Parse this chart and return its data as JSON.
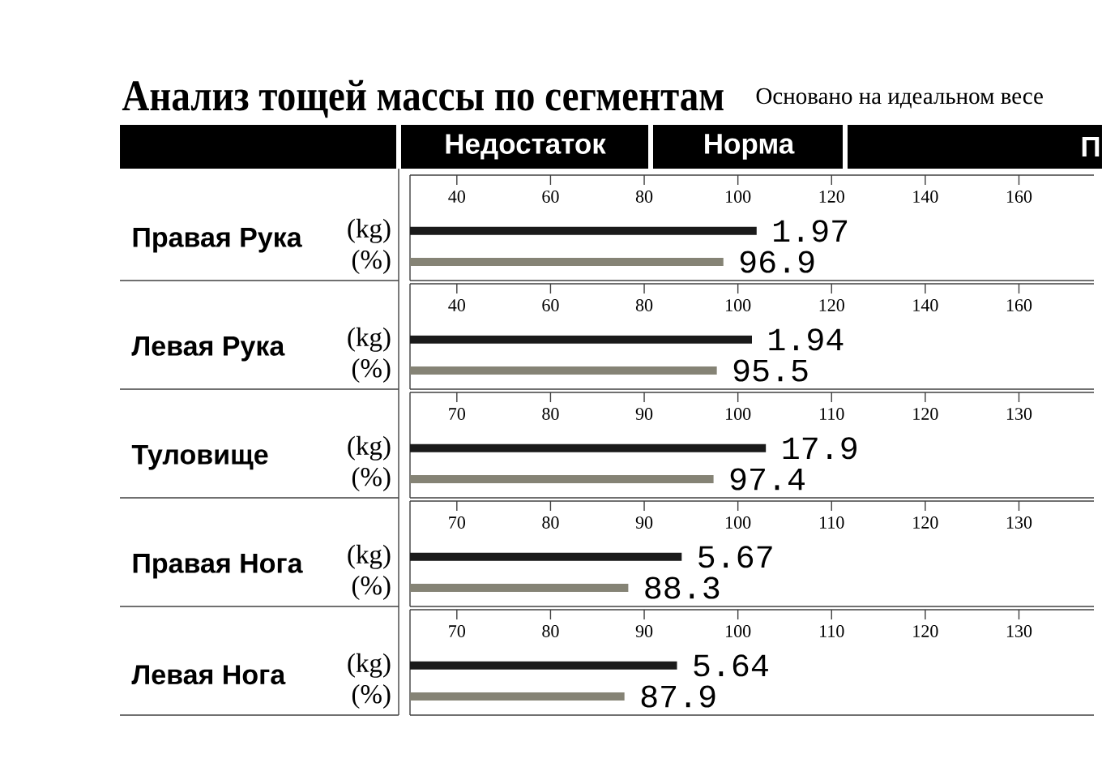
{
  "chart_data": [
    {
      "type": "other",
      "title": "Анализ тощей массы по сегментам",
      "subtitle": "Основано на идеальном весе",
      "annotations": [
        "Недостаток",
        "Норма",
        "П"
      ]
    },
    {
      "type": "bar",
      "orientation": "horizontal",
      "title": "Правая Рука",
      "categories": [
        "(kg)",
        "(%)"
      ],
      "xlim": [
        30,
        176
      ],
      "xticks": [
        40,
        60,
        80,
        100,
        120,
        140,
        160
      ],
      "values": [
        104,
        96.9
      ],
      "colors": [
        "#1a1a1a",
        "#858375"
      ],
      "value_labels": [
        null,
        "96.9"
      ],
      "annotations": [
        {
          "text": "1.97",
          "x": 104,
          "y": "(kg)"
        }
      ]
    },
    {
      "type": "bar",
      "orientation": "horizontal",
      "title": "Левая Рука",
      "categories": [
        "(kg)",
        "(%)"
      ],
      "xlim": [
        30,
        176
      ],
      "xticks": [
        40,
        60,
        80,
        100,
        120,
        140,
        160
      ],
      "values": [
        103,
        95.5
      ],
      "colors": [
        "#1a1a1a",
        "#858375"
      ],
      "value_labels": [
        null,
        "95.5"
      ],
      "annotations": [
        {
          "text": "1.94",
          "x": 103,
          "y": "(kg)"
        }
      ]
    },
    {
      "type": "bar",
      "orientation": "horizontal",
      "title": "Туловище",
      "categories": [
        "(kg)",
        "(%)"
      ],
      "xlim": [
        65,
        138
      ],
      "xticks": [
        70,
        80,
        90,
        100,
        110,
        120,
        130
      ],
      "values": [
        103,
        97.4
      ],
      "colors": [
        "#1a1a1a",
        "#858375"
      ],
      "value_labels": [
        null,
        "97.4"
      ],
      "annotations": [
        {
          "text": "17.9",
          "x": 103,
          "y": "(kg)"
        }
      ]
    },
    {
      "type": "bar",
      "orientation": "horizontal",
      "title": "Правая Нога",
      "categories": [
        "(kg)",
        "(%)"
      ],
      "xlim": [
        65,
        138
      ],
      "xticks": [
        70,
        80,
        90,
        100,
        110,
        120,
        130
      ],
      "values": [
        94,
        88.3
      ],
      "colors": [
        "#1a1a1a",
        "#858375"
      ],
      "value_labels": [
        null,
        "88.3"
      ],
      "annotations": [
        {
          "text": "5.67",
          "x": 94,
          "y": "(kg)"
        }
      ]
    },
    {
      "type": "bar",
      "orientation": "horizontal",
      "title": "Левая Нога",
      "categories": [
        "(kg)",
        "(%)"
      ],
      "xlim": [
        65,
        138
      ],
      "xticks": [
        70,
        80,
        90,
        100,
        110,
        120,
        130
      ],
      "values": [
        93.5,
        87.9
      ],
      "colors": [
        "#1a1a1a",
        "#858375"
      ],
      "value_labels": [
        null,
        "87.9"
      ],
      "annotations": [
        {
          "text": "5.64",
          "x": 93.5,
          "y": "(kg)"
        }
      ]
    }
  ]
}
